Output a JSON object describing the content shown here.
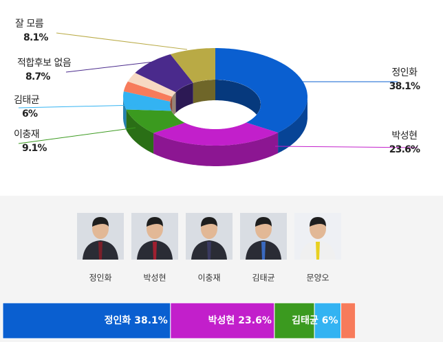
{
  "chart_data": {
    "type": "pie3d",
    "categories": [
      "정인화",
      "박성현",
      "이충재",
      "김태균",
      null,
      null,
      "적합후보 없음",
      "잘 모름"
    ],
    "values": [
      38.1,
      23.6,
      9.1,
      6,
      3.3,
      3.1,
      8.7,
      8.1
    ],
    "value_labels": [
      "38.1%",
      "23.6%",
      "9.1%",
      "6%",
      null,
      null,
      "8.7%",
      "8.1%"
    ],
    "colors": [
      "#0a5fd0",
      "#c21fcb",
      "#3b9a1f",
      "#33b3f2",
      "#f77b5b",
      "#f7d9c3",
      "#4a2a8c",
      "#b9aa45"
    ],
    "bar_label_shown": [
      true,
      true,
      false,
      true,
      false,
      false,
      false,
      false
    ],
    "candidates": [
      "정인화",
      "박성현",
      "이충재",
      "김태균",
      "문양오"
    ]
  }
}
